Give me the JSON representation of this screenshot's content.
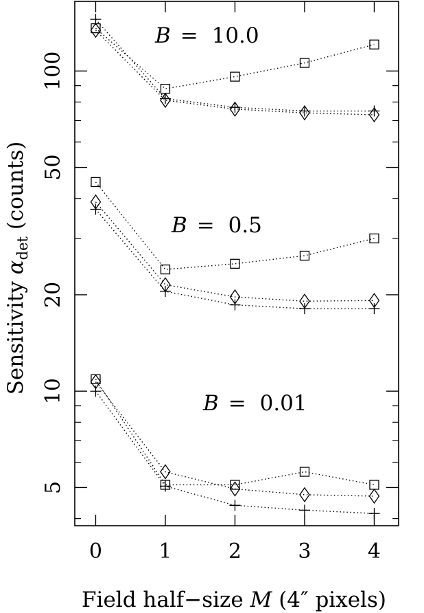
{
  "chart_data": {
    "type": "scatter",
    "title": "",
    "xlabel": "Field half-size M (4″ pixels)",
    "ylabel": "Sensitivity αdet (counts)",
    "ylabel_parts": {
      "pre": "Sensitivity ",
      "sym": "α",
      "sub": "det",
      "post": " (counts)"
    },
    "xlabel_parts": {
      "pre": "Field half−size ",
      "sym": "M",
      "post": " (4″ pixels)"
    },
    "xlim": [
      -0.3,
      4.35
    ],
    "ylim": [
      3.8,
      165
    ],
    "yscale": "log",
    "grid": false,
    "legend": "none",
    "x": [
      0,
      1,
      2,
      3,
      4
    ],
    "xticks": [
      0,
      1,
      2,
      3,
      4
    ],
    "xtick_labels": [
      "0",
      "1",
      "2",
      "3",
      "4"
    ],
    "yticks_labeled": [
      5,
      10,
      20,
      50,
      100
    ],
    "ytick_labels": [
      "5",
      "10",
      "20",
      "50",
      "100"
    ],
    "yticks_minor": [
      4,
      6,
      7,
      8,
      9,
      30,
      40,
      60,
      70,
      80,
      90
    ],
    "groups": [
      {
        "label": {
          "var": "B",
          "eq": "= 10.0"
        },
        "series": [
          {
            "marker": "square",
            "values": [
              136,
              88,
              96,
              106,
              121
            ]
          },
          {
            "marker": "diamond",
            "values": [
              134,
              81,
              76,
              74,
              73
            ]
          },
          {
            "marker": "plus",
            "values": [
              145,
              82,
              77,
              75,
              75
            ]
          }
        ]
      },
      {
        "label": {
          "var": "B",
          "eq": "= 0.5"
        },
        "series": [
          {
            "marker": "square",
            "values": [
              45,
              24,
              25,
              26.5,
              30
            ]
          },
          {
            "marker": "diamond",
            "values": [
              39,
              21.5,
              19.7,
              19.1,
              19.2
            ]
          },
          {
            "marker": "plus",
            "values": [
              37,
              20.5,
              18.6,
              18.1,
              18.1
            ]
          }
        ]
      },
      {
        "label": {
          "var": "B",
          "eq": "= 0.01"
        },
        "series": [
          {
            "marker": "square",
            "values": [
              10.9,
              5.1,
              5.1,
              5.6,
              5.1
            ]
          },
          {
            "marker": "diamond",
            "values": [
              10.7,
              5.6,
              4.95,
              4.75,
              4.7
            ]
          },
          {
            "marker": "plus",
            "values": [
              10.0,
              5.05,
              4.4,
              4.25,
              4.15
            ]
          }
        ]
      }
    ],
    "colors": {
      "axis": "#000000",
      "marks": "#000000",
      "background": "#ffffff"
    }
  }
}
